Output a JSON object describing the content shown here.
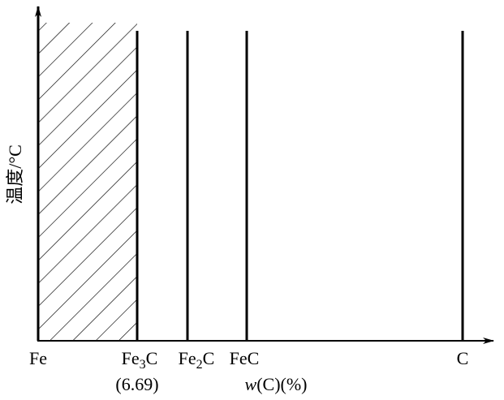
{
  "y_axis": {
    "label": "温度/°C"
  },
  "x_labels": [
    {
      "parts": [
        "Fe"
      ]
    },
    {
      "parts": [
        "Fe",
        "3",
        "C"
      ],
      "note": "(6.69)"
    },
    {
      "parts": [
        "Fe",
        "2",
        "C"
      ]
    },
    {
      "parts": [
        "FeC"
      ]
    },
    {
      "parts": [
        "C"
      ]
    }
  ],
  "x_axis": {
    "label": [
      "w",
      "(C)(%)"
    ]
  }
}
